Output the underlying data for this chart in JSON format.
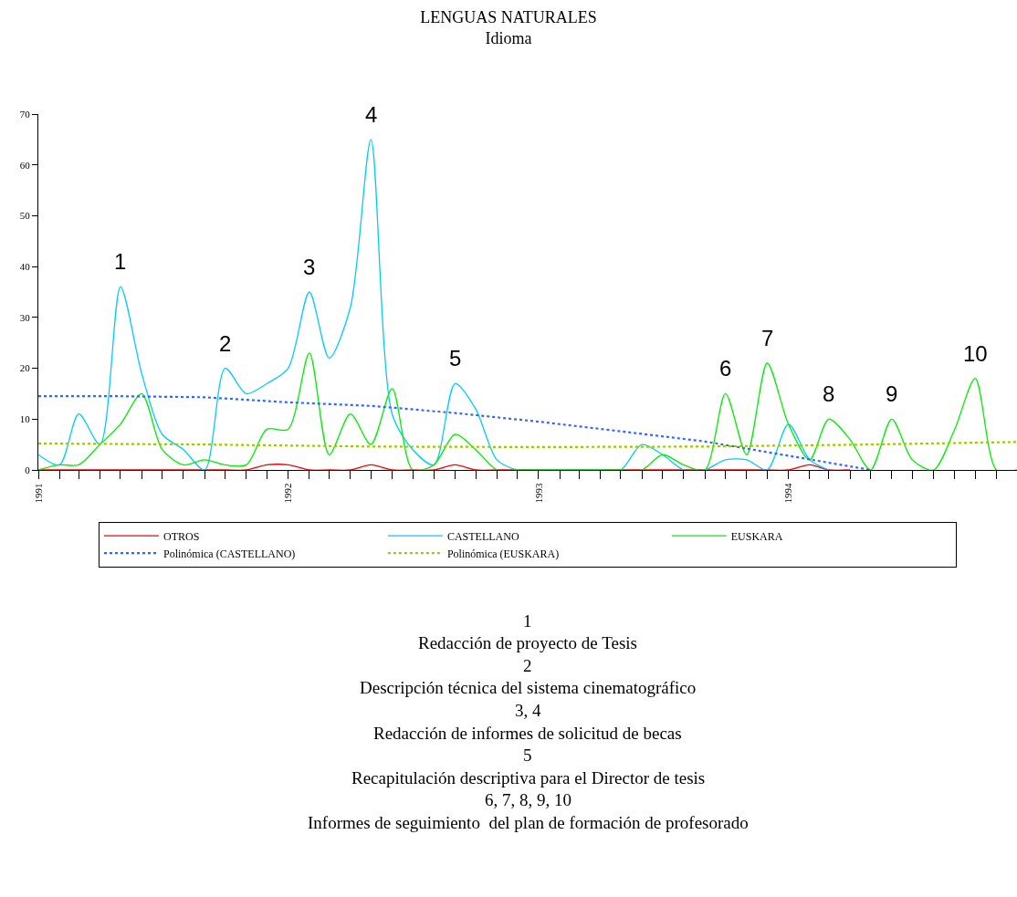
{
  "chart_data": {
    "type": "line",
    "title": "LENGUAS NATURALES",
    "subtitle": "Idioma",
    "x": [
      "1991-01",
      "1991-02",
      "1991-03",
      "1991-04",
      "1991-05",
      "1991-06",
      "1991-07",
      "1991-08",
      "1991-09",
      "1991-10",
      "1991-11",
      "1991-12",
      "1992-01",
      "1992-02",
      "1992-03",
      "1992-04",
      "1992-05",
      "1992-06",
      "1992-07",
      "1992-08",
      "1992-09",
      "1992-10",
      "1992-11",
      "1992-12",
      "1993-01",
      "1993-02",
      "1993-03",
      "1993-04",
      "1993-05",
      "1993-06",
      "1993-07",
      "1993-08",
      "1993-09",
      "1993-10",
      "1993-11",
      "1993-12",
      "1994-01",
      "1994-02",
      "1994-03",
      "1994-04",
      "1994-05",
      "1994-06",
      "1994-07",
      "1994-08",
      "1994-09",
      "1994-10",
      "1994-11",
      "1994-12"
    ],
    "series": [
      {
        "name": "OTROS",
        "color": "#ff0000",
        "values": [
          0,
          0,
          0,
          0,
          0,
          0,
          0,
          0,
          0,
          0,
          0,
          1,
          1,
          0,
          0,
          0,
          1,
          0,
          0,
          0,
          1,
          0,
          0,
          0,
          0,
          0,
          0,
          0,
          0,
          0,
          0,
          0,
          0,
          0,
          0,
          0,
          0,
          1,
          0,
          0,
          null,
          null,
          null,
          null,
          null,
          null,
          null,
          null
        ]
      },
      {
        "name": "CASTELLANO",
        "color": "#00ccff",
        "values": [
          3,
          1,
          11,
          5,
          36,
          19,
          7,
          4,
          0,
          20,
          15,
          17,
          20,
          35,
          22,
          32,
          65,
          11,
          4,
          1,
          17,
          12,
          2,
          0,
          0,
          0,
          0,
          0,
          0,
          5,
          3,
          0,
          0,
          2,
          2,
          0,
          9,
          2,
          0,
          null,
          null,
          null,
          null,
          null,
          null,
          null,
          null,
          null
        ]
      },
      {
        "name": "EUSKARA",
        "color": "#00ee00",
        "values": [
          0,
          1,
          1,
          5,
          9,
          15,
          4,
          1,
          2,
          1,
          1,
          8,
          8,
          23,
          3,
          11,
          5,
          16,
          0,
          1,
          7,
          4,
          0,
          0,
          0,
          0,
          0,
          0,
          0,
          0,
          3,
          1,
          0,
          15,
          3,
          21,
          9,
          2,
          10,
          6,
          0,
          10,
          2,
          0,
          8,
          18,
          0,
          0
        ]
      },
      {
        "name": "Polinómica (CASTELLANO)",
        "color": "#3366ff",
        "line_style": "dotted",
        "x": [
          "1991-01",
          "1991-05",
          "1991-09",
          "1992-01",
          "1992-05",
          "1992-09",
          "1993-01",
          "1993-05",
          "1993-09",
          "1994-01",
          "1994-05"
        ],
        "values": [
          14.5,
          14.5,
          14.3,
          13.3,
          12.6,
          11.2,
          9.5,
          7.6,
          5.6,
          2.8,
          0
        ]
      },
      {
        "name": "Polinómica (EUSKARA)",
        "color": "#99cc00",
        "line_style": "dotted",
        "x": [
          "1991-01",
          "1991-09",
          "1992-05",
          "1993-01",
          "1993-09",
          "1994-05",
          "1994-12"
        ],
        "values": [
          5.2,
          5.0,
          4.6,
          4.5,
          4.6,
          5.0,
          5.5
        ]
      }
    ],
    "xlim": [
      "1991-01",
      "1994-12"
    ],
    "xticks": [
      {
        "value": "1991-01",
        "label": "1991"
      },
      {
        "value": "1991-02",
        "label": null
      },
      {
        "value": "1991-03",
        "label": null
      },
      {
        "value": "1991-04",
        "label": null
      },
      {
        "value": "1991-05",
        "label": null
      },
      {
        "value": "1991-06",
        "label": null
      },
      {
        "value": "1991-07",
        "label": null
      },
      {
        "value": "1991-08",
        "label": null
      },
      {
        "value": "1991-09",
        "label": null
      },
      {
        "value": "1991-10",
        "label": null
      },
      {
        "value": "1991-11",
        "label": null
      },
      {
        "value": "1991-12",
        "label": null
      },
      {
        "value": "1992-01",
        "label": "1992"
      },
      {
        "value": "1992-02",
        "label": null
      },
      {
        "value": "1992-03",
        "label": null
      },
      {
        "value": "1992-04",
        "label": null
      },
      {
        "value": "1992-05",
        "label": null
      },
      {
        "value": "1992-06",
        "label": null
      },
      {
        "value": "1992-07",
        "label": null
      },
      {
        "value": "1992-08",
        "label": null
      },
      {
        "value": "1992-09",
        "label": null
      },
      {
        "value": "1992-10",
        "label": null
      },
      {
        "value": "1992-11",
        "label": null
      },
      {
        "value": "1992-12",
        "label": null
      },
      {
        "value": "1993-01",
        "label": "1993"
      },
      {
        "value": "1993-02",
        "label": null
      },
      {
        "value": "1993-03",
        "label": null
      },
      {
        "value": "1993-04",
        "label": null
      },
      {
        "value": "1993-05",
        "label": null
      },
      {
        "value": "1993-06",
        "label": null
      },
      {
        "value": "1993-07",
        "label": null
      },
      {
        "value": "1993-08",
        "label": null
      },
      {
        "value": "1993-09",
        "label": null
      },
      {
        "value": "1993-10",
        "label": null
      },
      {
        "value": "1993-11",
        "label": null
      },
      {
        "value": "1993-12",
        "label": null
      },
      {
        "value": "1994-01",
        "label": "1994"
      },
      {
        "value": "1994-02",
        "label": null
      },
      {
        "value": "1994-03",
        "label": null
      },
      {
        "value": "1994-04",
        "label": null
      },
      {
        "value": "1994-05",
        "label": null
      },
      {
        "value": "1994-06",
        "label": null
      },
      {
        "value": "1994-07",
        "label": null
      },
      {
        "value": "1994-08",
        "label": null
      },
      {
        "value": "1994-09",
        "label": null
      },
      {
        "value": "1994-10",
        "label": null
      },
      {
        "value": "1994-11",
        "label": null
      }
    ],
    "ylim": [
      0,
      70
    ],
    "yticks": [
      0,
      10,
      20,
      30,
      40,
      50,
      60,
      70
    ],
    "legend": "bottom",
    "annotations": [
      {
        "text": "1",
        "x": "1991-05",
        "y": 36
      },
      {
        "text": "2",
        "x": "1991-10",
        "y": 20
      },
      {
        "text": "3",
        "x": "1992-02",
        "y": 35
      },
      {
        "text": "4",
        "x": "1992-05",
        "y": 65
      },
      {
        "text": "5",
        "x": "1992-09",
        "y": 17
      },
      {
        "text": "6",
        "x": "1993-10",
        "y": 15
      },
      {
        "text": "7",
        "x": "1993-12",
        "y": 21
      },
      {
        "text": "8",
        "x": "1994-03",
        "y": 10
      },
      {
        "text": "9",
        "x": "1994-06",
        "y": 10
      },
      {
        "text": "10",
        "x": "1994-10",
        "y": 18
      },
      "1",
      "Redacción de proyecto de Tesis",
      "2",
      "Descripción técnica del sistema cinematográfico",
      "3, 4",
      "Redacción de informes de solicitud de becas",
      "5",
      "Recapitulación descriptiva para el Director de tesis",
      "6, 7, 8, 9, 10",
      "Informes de seguimiento  del plan de formación de profesorado"
    ]
  }
}
